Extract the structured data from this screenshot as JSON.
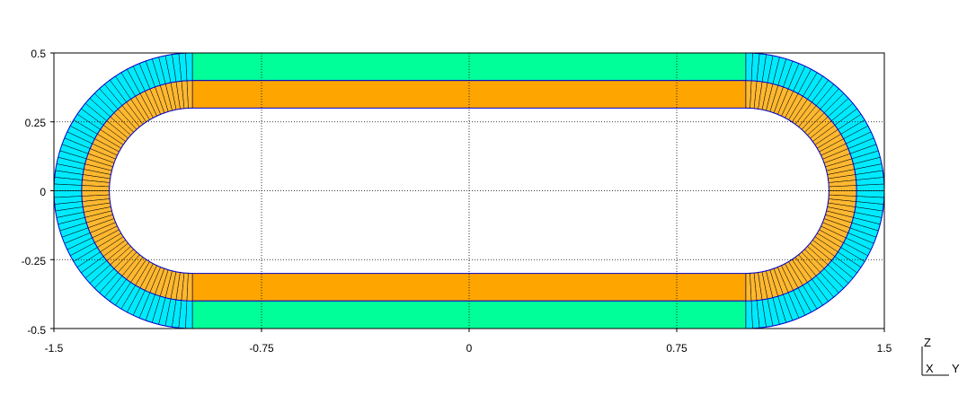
{
  "x_ticks": [
    "-1.5",
    "-0.75",
    "0",
    "0.75",
    "1.5"
  ],
  "y_ticks": [
    "0.5",
    "0.25",
    "0",
    "-0.25",
    "-0.5"
  ],
  "axis_triad": {
    "vertical": "Z",
    "out": "X",
    "horizontal": "Y"
  },
  "geometry": {
    "xlim": [
      -1.5,
      1.5
    ],
    "ylim": [
      -0.5,
      0.5
    ],
    "straight_x": [
      -1.0,
      1.0
    ],
    "inner_radius": 0.3,
    "middle_radius": 0.4,
    "outer_radius": 0.5,
    "arc_segments": 64,
    "straight_end_segments": 2
  },
  "colors": {
    "outer_layer": "#00ff99",
    "inner_layer": "#ffa500",
    "outer_arc": "#00eaff",
    "inner_arc": "#ffb830",
    "mesh_line": "#000000",
    "outline": "#0000cc",
    "grid": "#000000"
  }
}
